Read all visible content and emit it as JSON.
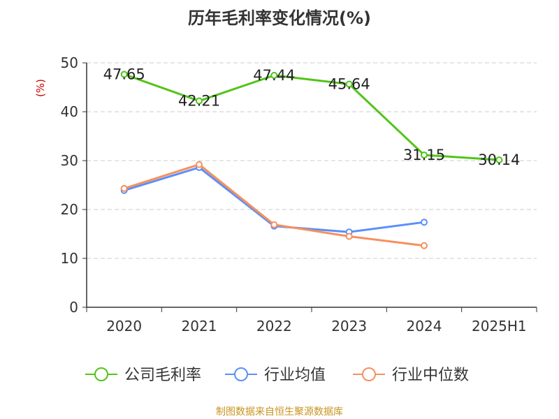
{
  "chart_data": {
    "type": "line",
    "title": "历年毛利率变化情况(%)",
    "ylabel": "(%)",
    "categories": [
      "2020",
      "2021",
      "2022",
      "2023",
      "2024",
      "2025H1"
    ],
    "ylim": [
      0,
      50
    ],
    "yticks": [
      "0",
      "10",
      "20",
      "30",
      "40",
      "50"
    ],
    "grid": true,
    "legend_position": "bottom",
    "series": [
      {
        "name": "公司毛利率",
        "color": "#52c41a",
        "values": [
          47.65,
          42.21,
          47.44,
          45.64,
          31.15,
          30.14
        ],
        "labels": [
          "47.65",
          "42.21",
          "47.44",
          "45.64",
          "31.15",
          "30.14"
        ]
      },
      {
        "name": "行业均值",
        "color": "#5b8ff9",
        "values": [
          23.9,
          28.6,
          16.6,
          15.4,
          17.4,
          null
        ]
      },
      {
        "name": "行业中位数",
        "color": "#f6905e",
        "values": [
          24.3,
          29.2,
          16.9,
          14.5,
          12.6,
          null
        ]
      }
    ]
  },
  "footer": {
    "source": "制图数据来自恒生聚源数据库"
  }
}
